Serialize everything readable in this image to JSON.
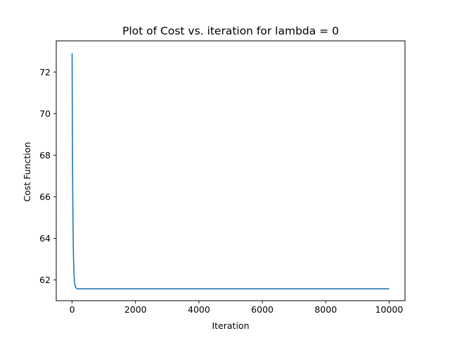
{
  "chart_data": {
    "type": "line",
    "title": "Plot of Cost vs. iteration for lambda = 0",
    "xlabel": "Iteration",
    "ylabel": "Cost Function",
    "xlim": [
      -500,
      10500
    ],
    "ylim": [
      61.0,
      73.5
    ],
    "x_ticks": [
      0,
      2000,
      4000,
      6000,
      8000,
      10000
    ],
    "x_tick_labels": [
      "0",
      "2000",
      "4000",
      "6000",
      "8000",
      "10000"
    ],
    "y_ticks": [
      62,
      64,
      66,
      68,
      70,
      72
    ],
    "y_tick_labels": [
      "62",
      "64",
      "66",
      "68",
      "70",
      "72"
    ],
    "grid": false,
    "legend": "none",
    "series": [
      {
        "color": "#1f77b4",
        "x": [
          0,
          5,
          10,
          15,
          20,
          25,
          30,
          40,
          50,
          60,
          70,
          80,
          100,
          120,
          150,
          200,
          300,
          500,
          1000,
          2000,
          4000,
          6000,
          8000,
          10000
        ],
        "y": [
          72.9,
          70.6,
          68.8,
          67.3,
          66.2,
          65.2,
          64.5,
          63.4,
          62.7,
          62.3,
          62.0,
          61.85,
          61.7,
          61.62,
          61.58,
          61.57,
          61.57,
          61.57,
          61.57,
          61.57,
          61.57,
          61.57,
          61.57,
          61.57
        ]
      }
    ]
  }
}
